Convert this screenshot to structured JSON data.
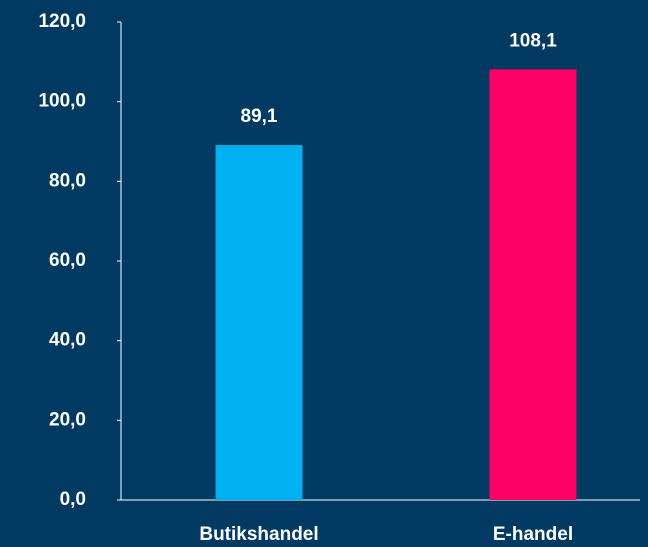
{
  "chart_data": {
    "type": "bar",
    "categories": [
      "Butikshandel",
      "E-handel"
    ],
    "values": [
      89.1,
      108.1
    ],
    "value_labels": [
      "89,1",
      "108,1"
    ],
    "colors": [
      "#00b0f0",
      "#ff0066"
    ],
    "ylim": [
      0,
      120
    ],
    "yticks": [
      {
        "value": 0,
        "label": "0,0"
      },
      {
        "value": 20,
        "label": "20,0"
      },
      {
        "value": 40,
        "label": "40,0"
      },
      {
        "value": 60,
        "label": "60,0"
      },
      {
        "value": 80,
        "label": "80,0"
      },
      {
        "value": 100,
        "label": "100,0"
      },
      {
        "value": 120,
        "label": "120,0"
      }
    ],
    "grid": false
  }
}
